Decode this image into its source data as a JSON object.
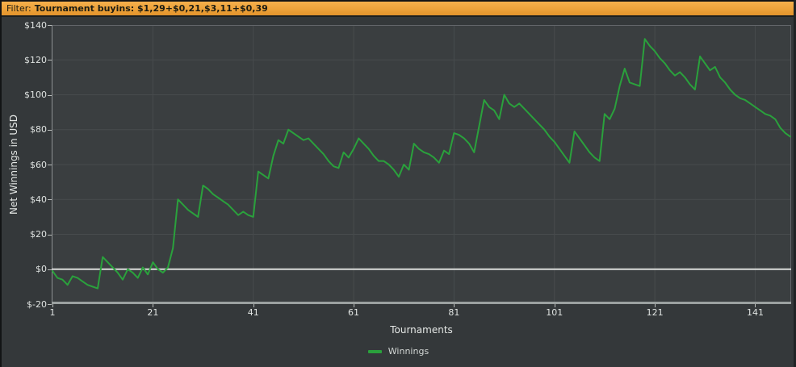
{
  "filter_bar": {
    "label": "Filter:",
    "value": "Tournament buyins: $1,29+$0,21,$3,11+$0,39"
  },
  "colors": {
    "filter_bar_orange": "#eda23a",
    "series_green": "#2aa13c",
    "zero_line": "#d9dcda",
    "gridline": "#474b4d",
    "axis_line": "#9ba1a0",
    "plot_background": "#3a3e40",
    "window_background": "#34383a",
    "label_text": "#dfe3e1"
  },
  "chart_data": {
    "type": "line",
    "title": "",
    "xlabel": "Tournaments",
    "ylabel": "Net Winnings in USD",
    "xlim": [
      1,
      148
    ],
    "ylim": [
      -20,
      140
    ],
    "grid": true,
    "zero_line": true,
    "legend_position": "bottom-center",
    "x_ticks": [
      {
        "label": "1",
        "value": 1
      },
      {
        "label": "21",
        "value": 21
      },
      {
        "label": "41",
        "value": 41
      },
      {
        "label": "61",
        "value": 61
      },
      {
        "label": "81",
        "value": 81
      },
      {
        "label": "101",
        "value": 101
      },
      {
        "label": "121",
        "value": 121
      },
      {
        "label": "141",
        "value": 141
      }
    ],
    "y_ticks": [
      {
        "label": "$140",
        "value": 140
      },
      {
        "label": "$120",
        "value": 120
      },
      {
        "label": "$100",
        "value": 100
      },
      {
        "label": "$80",
        "value": 80
      },
      {
        "label": "$60",
        "value": 60
      },
      {
        "label": "$40",
        "value": 40
      },
      {
        "label": "$20",
        "value": 20
      },
      {
        "label": "$0",
        "value": 0
      },
      {
        "label": "$-20",
        "value": -20
      }
    ],
    "series": [
      {
        "name": "Winnings",
        "color": "#2aa13c",
        "x_start": 1,
        "values": [
          -1,
          -5,
          -6,
          -9,
          -4,
          -5,
          -7,
          -9,
          -10,
          -11,
          7,
          4,
          1,
          -2,
          -6,
          0,
          -2,
          -5,
          1,
          -3,
          4,
          0,
          -2,
          1,
          12,
          40,
          37,
          34,
          32,
          30,
          48,
          46,
          43,
          41,
          39,
          37,
          34,
          31,
          33,
          31,
          30,
          56,
          54,
          52,
          65,
          74,
          72,
          80,
          78,
          76,
          74,
          75,
          72,
          69,
          66,
          62,
          59,
          58,
          67,
          64,
          69,
          75,
          72,
          69,
          65,
          62,
          62,
          60,
          57,
          53,
          60,
          57,
          72,
          69,
          67,
          66,
          64,
          61,
          68,
          66,
          78,
          77,
          75,
          72,
          67,
          82,
          97,
          93,
          91,
          86,
          100,
          95,
          93,
          95,
          92,
          89,
          86,
          83,
          80,
          76,
          73,
          69,
          65,
          61,
          79,
          75,
          71,
          67,
          64,
          62,
          89,
          86,
          92,
          105,
          115,
          107,
          106,
          105,
          132,
          128,
          125,
          121,
          118,
          114,
          111,
          113,
          110,
          106,
          103,
          122,
          118,
          114,
          116,
          110,
          107,
          103,
          100,
          98,
          97,
          95,
          93,
          91,
          89,
          88,
          86,
          81,
          78,
          76
        ]
      }
    ]
  }
}
